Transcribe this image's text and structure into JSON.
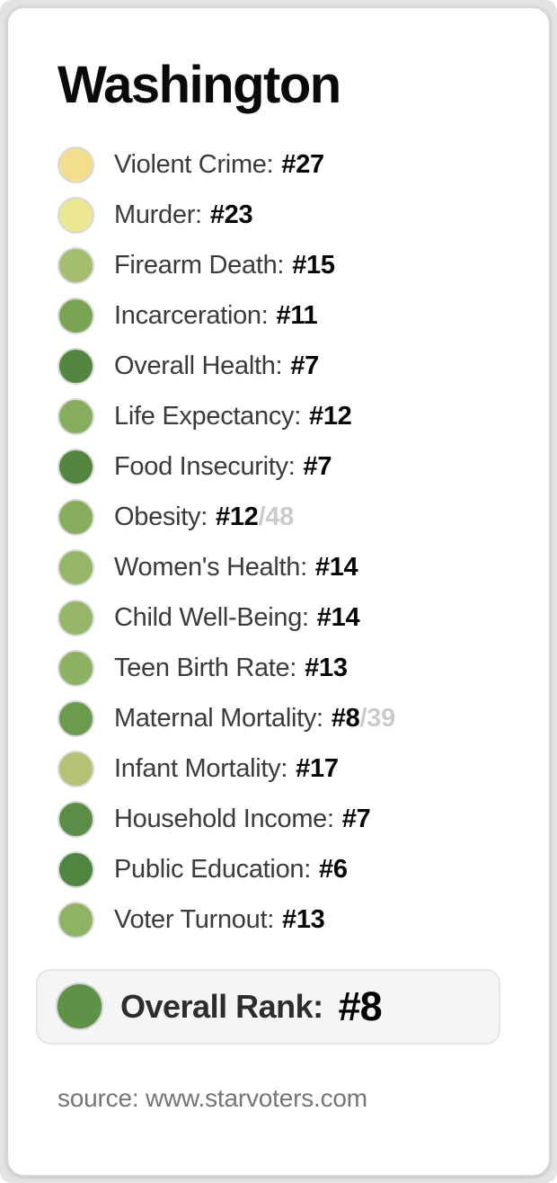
{
  "page": {
    "title": "Washington",
    "source": "source: www.starvoters.com"
  },
  "metrics": [
    {
      "label": "Violent Crime:",
      "rank": "#27",
      "suffix": "",
      "color": "#F3DE8D"
    },
    {
      "label": "Murder:",
      "rank": "#23",
      "suffix": "",
      "color": "#ECE793"
    },
    {
      "label": "Firearm Death:",
      "rank": "#15",
      "suffix": "",
      "color": "#A4BD6F"
    },
    {
      "label": "Incarceration:",
      "rank": "#11",
      "suffix": "",
      "color": "#79A553"
    },
    {
      "label": "Overall Health:",
      "rank": "#7",
      "suffix": "",
      "color": "#538740"
    },
    {
      "label": "Life Expectancy:",
      "rank": "#12",
      "suffix": "",
      "color": "#87AE5D"
    },
    {
      "label": "Food Insecurity:",
      "rank": "#7",
      "suffix": "",
      "color": "#538740"
    },
    {
      "label": "Obesity:",
      "rank": "#12",
      "suffix": "/48",
      "color": "#87AE5D"
    },
    {
      "label": "Women's Health:",
      "rank": "#14",
      "suffix": "",
      "color": "#96B768"
    },
    {
      "label": "Child Well-Being:",
      "rank": "#14",
      "suffix": "",
      "color": "#96B768"
    },
    {
      "label": "Teen Birth Rate:",
      "rank": "#13",
      "suffix": "",
      "color": "#8EB261"
    },
    {
      "label": "Maternal Mortality:",
      "rank": "#8",
      "suffix": "/39",
      "color": "#6C9B4E"
    },
    {
      "label": "Infant Mortality:",
      "rank": "#17",
      "suffix": "",
      "color": "#B3C274"
    },
    {
      "label": "Household Income:",
      "rank": "#7",
      "suffix": "",
      "color": "#5A8D45"
    },
    {
      "label": "Public Education:",
      "rank": "#6",
      "suffix": "",
      "color": "#4E8540"
    },
    {
      "label": "Voter Turnout:",
      "rank": "#13",
      "suffix": "",
      "color": "#8FB263"
    }
  ],
  "overall": {
    "label": "Overall Rank:",
    "rank": "#8",
    "color": "#5F9146"
  },
  "colors": {
    "card_background": "#FFFFFF",
    "frame_background": "#E3E3E4",
    "card_border": "#D7D7D9",
    "dot_ring": "#D8D8D8",
    "label_text": "#3B3B3D",
    "rank_text": "#050505",
    "denominator_text": "#CBCBCD",
    "overall_box_background": "#F4F5F7",
    "overall_box_border": "#E4E5E8",
    "source_text": "#757577"
  },
  "chart_data": {
    "type": "table",
    "title": "Washington",
    "categories": [
      "Violent Crime",
      "Murder",
      "Firearm Death",
      "Incarceration",
      "Overall Health",
      "Life Expectancy",
      "Food Insecurity",
      "Obesity",
      "Women's Health",
      "Child Well-Being",
      "Teen Birth Rate",
      "Maternal Mortality",
      "Infant Mortality",
      "Household Income",
      "Public Education",
      "Voter Turnout"
    ],
    "values": [
      27,
      23,
      15,
      11,
      7,
      12,
      7,
      12,
      14,
      14,
      13,
      8,
      17,
      7,
      6,
      13
    ],
    "denominators": {
      "Obesity": 48,
      "Maternal Mortality": 39
    },
    "overall_rank": 8,
    "value_format": "state rank, lower is better (green = good, yellow = middling)",
    "source": "www.starvoters.com"
  }
}
